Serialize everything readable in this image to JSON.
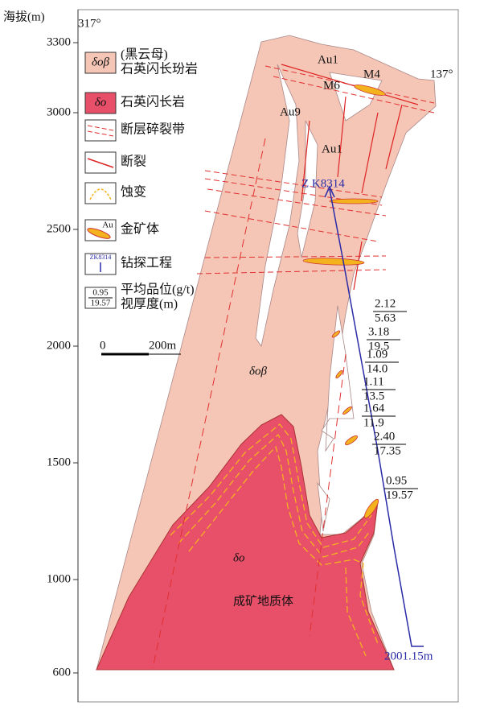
{
  "axis": {
    "label": "海拔(m)",
    "ticks": [
      3300,
      3000,
      2500,
      2000,
      1500,
      1000,
      600
    ]
  },
  "directions": {
    "left": "317°",
    "right": "137°"
  },
  "legend": [
    {
      "symbol": "δοβ",
      "lines": [
        "(黑云母)",
        "石英闪长玢岩"
      ]
    },
    {
      "symbol": "δο",
      "lines": [
        "石英闪长岩"
      ]
    },
    {
      "lines": [
        "断层碎裂带"
      ]
    },
    {
      "lines": [
        "断裂"
      ]
    },
    {
      "lines": [
        "蚀变"
      ]
    },
    {
      "symbol": "Au",
      "lines": [
        "金矿体"
      ]
    },
    {
      "symbol": "ZK8314",
      "lines": [
        "钻探工程"
      ]
    },
    {
      "symbol": [
        "0.95",
        "19.57"
      ],
      "lines": [
        "平均品位(g/t)",
        "视厚度(m)"
      ]
    }
  ],
  "scale_bar": {
    "start": "0",
    "end": "200m"
  },
  "labels": {
    "au1_top": "Au1",
    "m4": "M4",
    "m6": "M6",
    "au9": "Au9",
    "au1_mid": "Au1",
    "drill": "Z K8314",
    "rock1": "δοβ",
    "rock2": "δο",
    "body": "成矿地质体",
    "depth": "2001.15m"
  },
  "grades": [
    {
      "grade": "2.12",
      "thickness": "5.63"
    },
    {
      "grade": "3.18",
      "thickness": "19.5"
    },
    {
      "grade": "1.09",
      "thickness": "14.0"
    },
    {
      "grade": "1.11",
      "thickness": "13.5"
    },
    {
      "grade": "1.64",
      "thickness": "11.9"
    },
    {
      "grade": "2.40",
      "thickness": "17.35"
    },
    {
      "grade": "0.95",
      "thickness": "19.57"
    }
  ]
}
